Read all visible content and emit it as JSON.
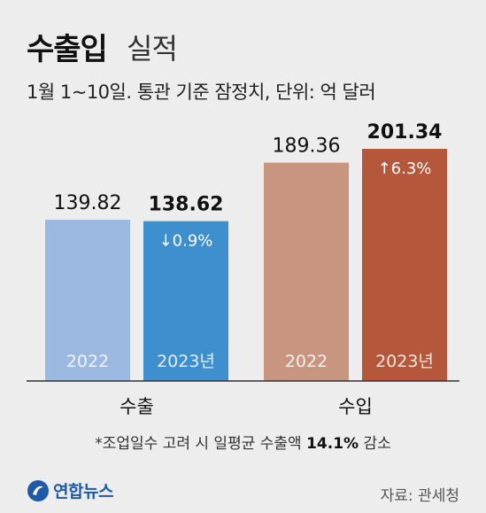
{
  "title": {
    "main": "수출입",
    "sub": "실적"
  },
  "subtitle": "1월 1~10일. 통관 기준 잠정치, 단위: 억 달러",
  "chart_data": {
    "type": "bar",
    "categories": [
      "수출",
      "수입"
    ],
    "groups": [
      {
        "category": "수출",
        "bars": [
          {
            "year": "2022",
            "value": 139.82,
            "value_label": "139.82",
            "change": "",
            "bold": false,
            "color": "#9bb9e0"
          },
          {
            "year": "2023년",
            "value": 138.62,
            "value_label": "138.62",
            "change": "↓0.9%",
            "bold": true,
            "color": "#3e8fcd"
          }
        ]
      },
      {
        "category": "수입",
        "bars": [
          {
            "year": "2022",
            "value": 189.36,
            "value_label": "189.36",
            "change": "",
            "bold": false,
            "color": "#c89580"
          },
          {
            "year": "2023년",
            "value": 201.34,
            "value_label": "201.34",
            "change": "↑6.3%",
            "bold": true,
            "color": "#b5573a"
          }
        ]
      }
    ],
    "ylim": [
      0,
      201.34
    ],
    "grid": false,
    "legend": "none"
  },
  "footnote": {
    "prefix": "*조업일수 고려 시 일평균 수출액 ",
    "highlight": "14.1%",
    "suffix": " 감소"
  },
  "logo_text": "연합뉴스",
  "source": "자료: 관세청",
  "colors": {
    "background": "#ededed",
    "axis": "#333333",
    "logo": "#1f5aa6"
  }
}
